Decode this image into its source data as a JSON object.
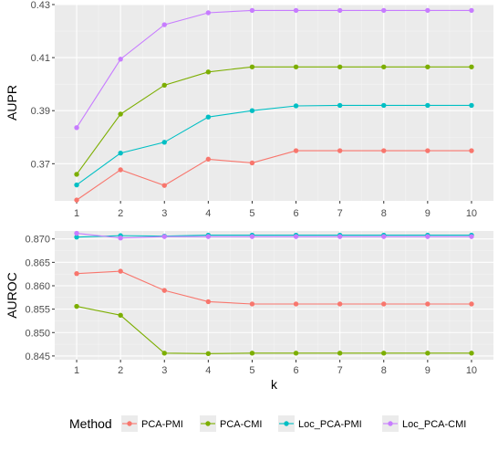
{
  "chart_data": [
    {
      "type": "line",
      "ylabel": "AUPR",
      "xlabel": "",
      "x": [
        1,
        2,
        3,
        4,
        5,
        6,
        7,
        8,
        9,
        10
      ],
      "ylim": [
        0.356,
        0.43
      ],
      "yticks": [
        0.37,
        0.39,
        0.41,
        0.43
      ],
      "grid": true,
      "series": [
        {
          "name": "PCA-PMI",
          "color": "#F8766D",
          "values": [
            0.3563,
            0.3677,
            0.3618,
            0.3717,
            0.3703,
            0.3749,
            0.3749,
            0.3749,
            0.3749,
            0.3749
          ]
        },
        {
          "name": "PCA-CMI",
          "color": "#7CAE00",
          "values": [
            0.366,
            0.3887,
            0.3996,
            0.4046,
            0.4065,
            0.4065,
            0.4065,
            0.4065,
            0.4065,
            0.4065
          ]
        },
        {
          "name": "Loc_PCA-PMI",
          "color": "#00BFC4",
          "values": [
            0.362,
            0.374,
            0.3781,
            0.3876,
            0.39,
            0.3918,
            0.392,
            0.392,
            0.392,
            0.392
          ]
        },
        {
          "name": "Loc_PCA-CMI",
          "color": "#C77CFF",
          "values": [
            0.3836,
            0.4094,
            0.4224,
            0.4269,
            0.4278,
            0.4278,
            0.4278,
            0.4278,
            0.4278,
            0.4278
          ]
        }
      ]
    },
    {
      "type": "line",
      "ylabel": "AUROC",
      "xlabel": "k",
      "x": [
        1,
        2,
        3,
        4,
        5,
        6,
        7,
        8,
        9,
        10
      ],
      "ylim": [
        0.8442,
        0.8717
      ],
      "yticks": [
        0.845,
        0.85,
        0.855,
        0.86,
        0.865,
        0.87
      ],
      "ytick_labels": [
        "0.845",
        "0.850",
        "0.855",
        "0.860",
        "0.865",
        "0.870"
      ],
      "grid": true,
      "series": [
        {
          "name": "PCA-PMI",
          "color": "#F8766D",
          "values": [
            0.8626,
            0.8631,
            0.859,
            0.8566,
            0.8561,
            0.8561,
            0.8561,
            0.8561,
            0.8561,
            0.8561
          ]
        },
        {
          "name": "PCA-CMI",
          "color": "#7CAE00",
          "values": [
            0.8556,
            0.8537,
            0.8456,
            0.8455,
            0.8456,
            0.8456,
            0.8456,
            0.8456,
            0.8456,
            0.8456
          ]
        },
        {
          "name": "Loc_PCA-PMI",
          "color": "#00BFC4",
          "values": [
            0.8704,
            0.8707,
            0.8706,
            0.8708,
            0.8708,
            0.8708,
            0.8708,
            0.8708,
            0.8708,
            0.8708
          ]
        },
        {
          "name": "Loc_PCA-CMI",
          "color": "#C77CFF",
          "values": [
            0.8712,
            0.8702,
            0.8705,
            0.8705,
            0.8705,
            0.8705,
            0.8705,
            0.8705,
            0.8705,
            0.8705
          ]
        }
      ]
    }
  ],
  "legend": {
    "title": "Method",
    "position": "bottom",
    "entries": [
      {
        "label": "PCA-PMI",
        "color": "#F8766D"
      },
      {
        "label": "PCA-CMI",
        "color": "#7CAE00"
      },
      {
        "label": "Loc_PCA-PMI",
        "color": "#00BFC4"
      },
      {
        "label": "Loc_PCA-CMI",
        "color": "#C77CFF"
      }
    ]
  }
}
